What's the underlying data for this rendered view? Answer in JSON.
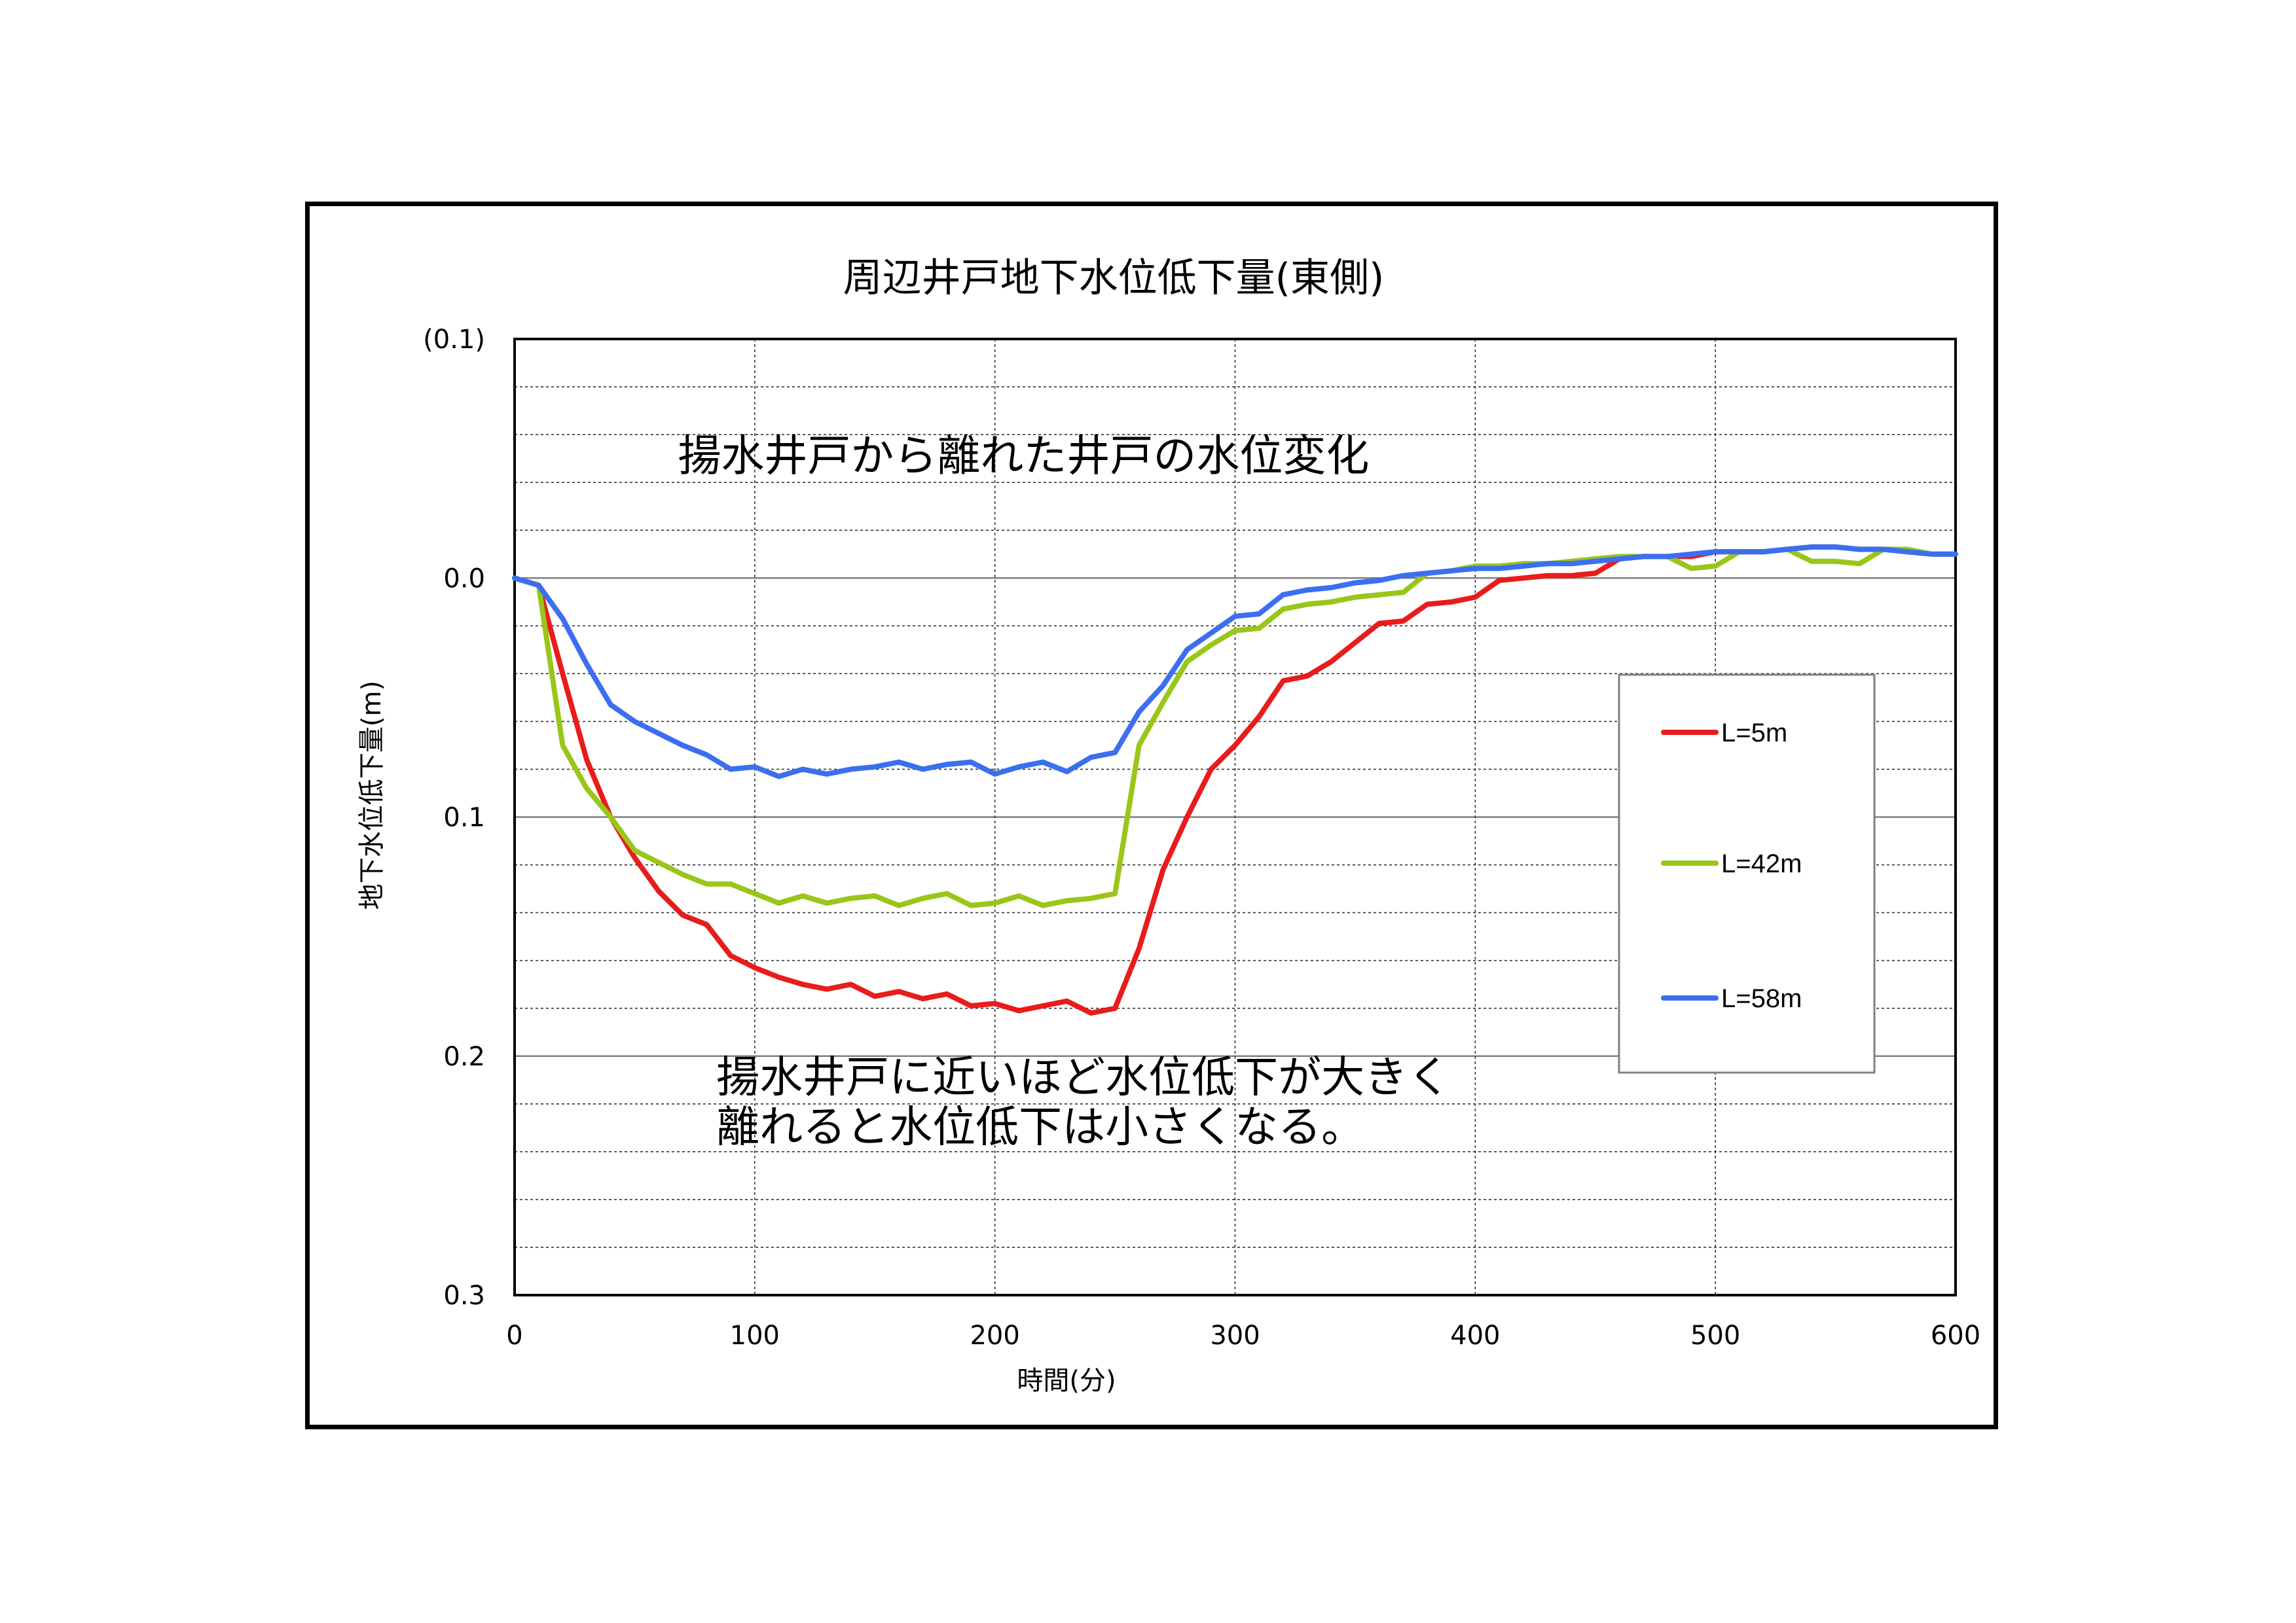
{
  "chart_data": {
    "type": "line",
    "title": "周辺井戸地下水位低下量(東側)",
    "xlabel": "時間(分)",
    "ylabel": "地下水位低下量(m)",
    "xlim": [
      0,
      600
    ],
    "ylim": [
      -0.1,
      0.3
    ],
    "y_inverted": true,
    "x_ticks": [
      "0",
      "100",
      "200",
      "300",
      "400",
      "500",
      "600"
    ],
    "y_ticks": [
      {
        "value": -0.1,
        "label": "(0.1)",
        "color": "#e00000"
      },
      {
        "value": 0.0,
        "label": "0.0",
        "color": "#000000"
      },
      {
        "value": 0.1,
        "label": "0.1",
        "color": "#000000"
      },
      {
        "value": 0.2,
        "label": "0.2",
        "color": "#000000"
      },
      {
        "value": 0.3,
        "label": "0.3",
        "color": "#000000"
      }
    ],
    "grid": true,
    "legend_position": "right",
    "annotations": [
      {
        "lines": [
          "揚水井戸から離れた井戸の水位変化"
        ],
        "at": {
          "x": 68,
          "y": -0.045
        }
      },
      {
        "lines": [
          "揚水井戸に近いほど水位低下が大きく",
          "離れると水位低下は小さくなる。"
        ],
        "at": {
          "x": 84,
          "y": 0.215
        }
      }
    ],
    "series": [
      {
        "name": "L=5m",
        "color": "#e81c1c",
        "x": [
          0,
          10,
          20,
          30,
          40,
          50,
          60,
          70,
          80,
          90,
          100,
          110,
          120,
          130,
          140,
          150,
          160,
          170,
          180,
          190,
          200,
          210,
          220,
          230,
          240,
          250,
          260,
          270,
          280,
          290,
          300,
          310,
          320,
          330,
          340,
          350,
          360,
          370,
          380,
          390,
          400,
          410,
          420,
          430,
          440,
          450,
          460,
          470,
          480,
          490,
          500,
          510,
          520,
          530,
          540,
          550,
          560,
          570,
          580,
          590,
          600
        ],
        "y": [
          0,
          0.003,
          0.04,
          0.076,
          0.1,
          0.117,
          0.131,
          0.141,
          0.145,
          0.158,
          0.163,
          0.167,
          0.17,
          0.172,
          0.17,
          0.175,
          0.173,
          0.176,
          0.174,
          0.179,
          0.178,
          0.181,
          0.179,
          0.177,
          0.182,
          0.18,
          0.155,
          0.122,
          0.1,
          0.08,
          0.07,
          0.058,
          0.043,
          0.041,
          0.035,
          0.027,
          0.019,
          0.018,
          0.011,
          0.01,
          0.008,
          0.001,
          0.0,
          -0.001,
          -0.001,
          -0.002,
          -0.008,
          -0.009,
          -0.009,
          -0.009,
          -0.011,
          -0.011,
          -0.011,
          -0.012,
          -0.013,
          -0.013,
          -0.012,
          -0.012,
          -0.011,
          -0.01,
          -0.01
        ]
      },
      {
        "name": "L=42m",
        "color": "#99c619",
        "x": [
          0,
          10,
          20,
          30,
          40,
          50,
          60,
          70,
          80,
          90,
          100,
          110,
          120,
          130,
          140,
          150,
          160,
          170,
          180,
          190,
          200,
          210,
          220,
          230,
          240,
          250,
          260,
          270,
          280,
          290,
          300,
          310,
          320,
          330,
          340,
          350,
          360,
          370,
          380,
          390,
          400,
          410,
          420,
          430,
          440,
          450,
          460,
          470,
          480,
          490,
          500,
          510,
          520,
          530,
          540,
          550,
          560,
          570,
          580,
          590,
          600
        ],
        "y": [
          0,
          0.003,
          0.07,
          0.088,
          0.1,
          0.114,
          0.119,
          0.124,
          0.128,
          0.128,
          0.132,
          0.136,
          0.133,
          0.136,
          0.134,
          0.133,
          0.137,
          0.134,
          0.132,
          0.137,
          0.136,
          0.133,
          0.137,
          0.135,
          0.134,
          0.132,
          0.07,
          0.052,
          0.035,
          0.028,
          0.022,
          0.021,
          0.013,
          0.011,
          0.01,
          0.008,
          0.007,
          0.006,
          -0.002,
          -0.003,
          -0.005,
          -0.005,
          -0.006,
          -0.006,
          -0.007,
          -0.008,
          -0.009,
          -0.009,
          -0.009,
          -0.004,
          -0.005,
          -0.011,
          -0.011,
          -0.012,
          -0.007,
          -0.007,
          -0.006,
          -0.012,
          -0.012,
          -0.01,
          -0.01
        ]
      },
      {
        "name": "L=58m",
        "color": "#3b6ff0",
        "x": [
          0,
          10,
          20,
          30,
          40,
          50,
          60,
          70,
          80,
          90,
          100,
          110,
          120,
          130,
          140,
          150,
          160,
          170,
          180,
          190,
          200,
          210,
          220,
          230,
          240,
          250,
          260,
          270,
          280,
          290,
          300,
          310,
          320,
          330,
          340,
          350,
          360,
          370,
          380,
          390,
          400,
          410,
          420,
          430,
          440,
          450,
          460,
          470,
          480,
          490,
          500,
          510,
          520,
          530,
          540,
          550,
          560,
          570,
          580,
          590,
          600
        ],
        "y": [
          0,
          0.003,
          0.017,
          0.036,
          0.053,
          0.06,
          0.065,
          0.07,
          0.074,
          0.08,
          0.079,
          0.083,
          0.08,
          0.082,
          0.08,
          0.079,
          0.077,
          0.08,
          0.078,
          0.077,
          0.082,
          0.079,
          0.077,
          0.081,
          0.075,
          0.073,
          0.056,
          0.045,
          0.03,
          0.023,
          0.016,
          0.015,
          0.007,
          0.005,
          0.004,
          0.002,
          0.001,
          -0.001,
          -0.002,
          -0.003,
          -0.004,
          -0.004,
          -0.005,
          -0.006,
          -0.006,
          -0.007,
          -0.008,
          -0.009,
          -0.009,
          -0.01,
          -0.011,
          -0.011,
          -0.011,
          -0.012,
          -0.013,
          -0.013,
          -0.012,
          -0.012,
          -0.011,
          -0.01,
          -0.01
        ]
      }
    ]
  }
}
